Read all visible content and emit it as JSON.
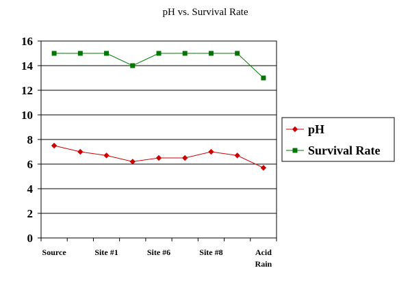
{
  "chart_data": {
    "type": "line",
    "title": "pH vs. Survival Rate",
    "xlabel": "",
    "ylabel": "",
    "ylim": [
      0,
      16
    ],
    "yticks": [
      "0",
      "2",
      "4",
      "6",
      "8",
      "10",
      "12",
      "14",
      "16"
    ],
    "categories": [
      "Source",
      "",
      "Site #1",
      "",
      "Site #6",
      "",
      "Site #8",
      "",
      "Acid Rain"
    ],
    "x_tick_labels": [
      {
        "category_index": 0,
        "lines": [
          "Source"
        ]
      },
      {
        "category_index": 2,
        "lines": [
          "Site #1"
        ]
      },
      {
        "category_index": 4,
        "lines": [
          "Site #6"
        ]
      },
      {
        "category_index": 6,
        "lines": [
          "Site #8"
        ]
      },
      {
        "category_index": 8,
        "lines": [
          "Acid",
          "Rain"
        ]
      }
    ],
    "grid": true,
    "legend_position": "right",
    "series": [
      {
        "name": "pH",
        "values": [
          7.5,
          7.0,
          6.7,
          6.2,
          6.5,
          6.5,
          7.0,
          6.7,
          5.7
        ],
        "color": "#cc0000",
        "marker": "diamond"
      },
      {
        "name": "Survival Rate",
        "values": [
          15,
          15,
          15,
          14,
          15,
          15,
          15,
          15,
          13
        ],
        "color": "#007700",
        "marker": "square"
      }
    ]
  }
}
